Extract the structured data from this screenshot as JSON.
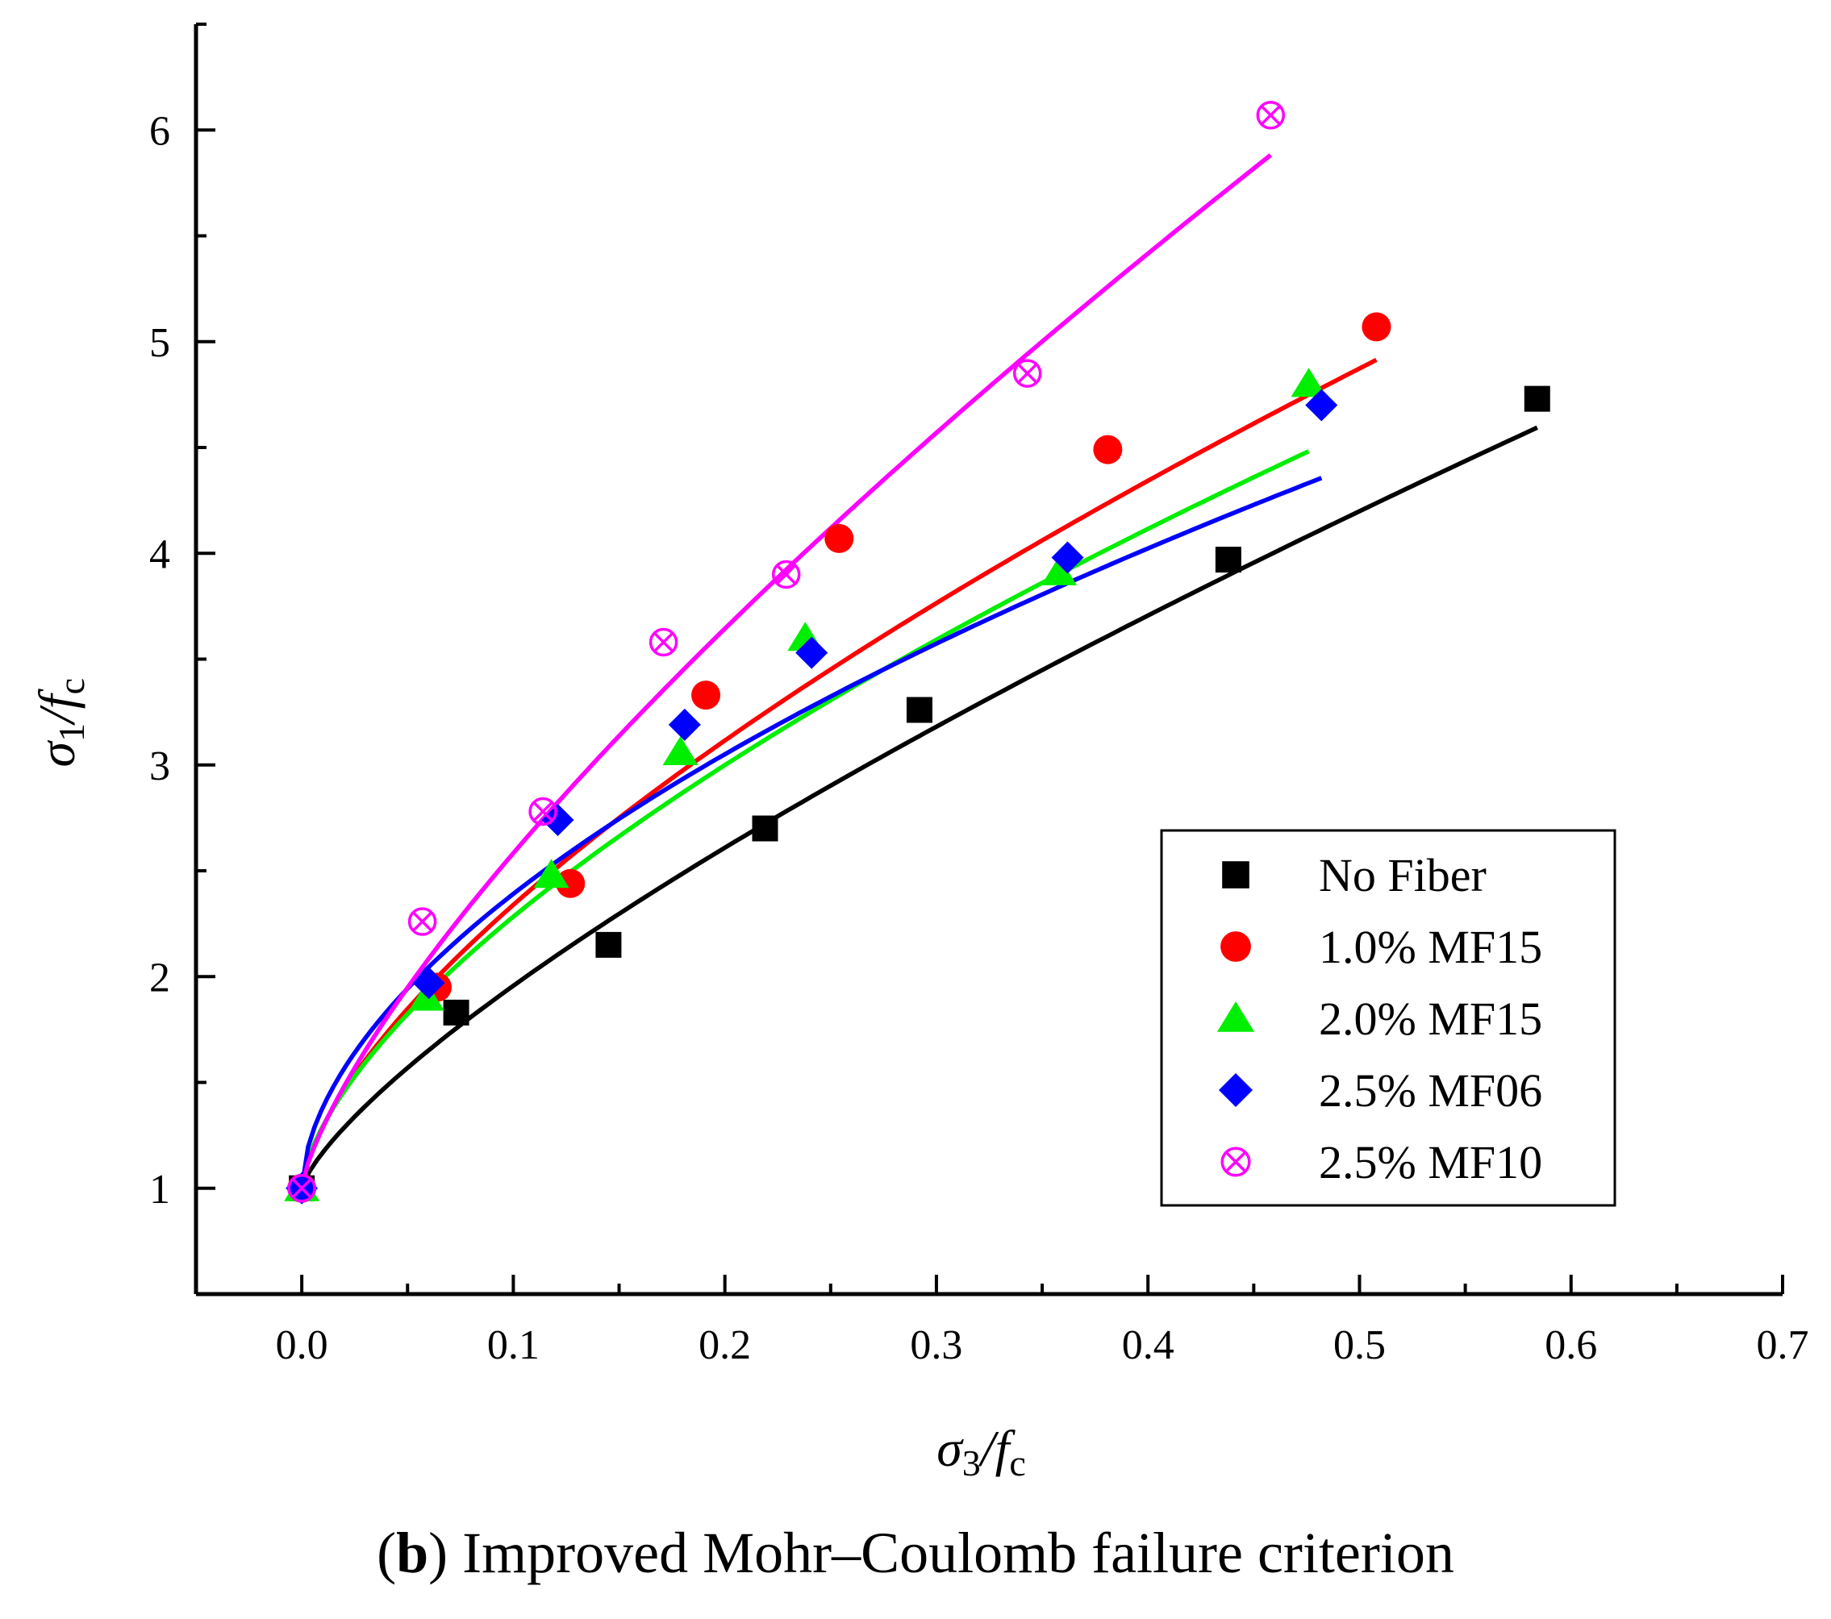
{
  "chart_data": {
    "type": "scatter",
    "title": "",
    "xlabel": "σ3/fc",
    "ylabel": "σ1/fc",
    "xlim": [
      -0.05,
      0.7
    ],
    "ylim": [
      0.5,
      6.5
    ],
    "xticks": [
      0.0,
      0.1,
      0.2,
      0.3,
      0.4,
      0.5,
      0.6,
      0.7
    ],
    "xtick_labels": [
      "0.0",
      "0.1",
      "0.2",
      "0.3",
      "0.4",
      "0.5",
      "0.6",
      "0.7"
    ],
    "yticks": [
      1,
      2,
      3,
      4,
      5,
      6
    ],
    "ytick_labels": [
      "1",
      "2",
      "3",
      "4",
      "5",
      "6"
    ],
    "legend_position": "lower-right",
    "series": [
      {
        "name": "No Fiber",
        "marker": "square",
        "color": "#000000",
        "points": [
          [
            0.0,
            1.0
          ],
          [
            0.073,
            1.83
          ],
          [
            0.145,
            2.15
          ],
          [
            0.219,
            2.7
          ],
          [
            0.292,
            3.26
          ],
          [
            0.438,
            3.97
          ],
          [
            0.584,
            4.73
          ]
        ],
        "fit": {
          "x_max": 0.584,
          "k": 5.38,
          "n": 0.75
        }
      },
      {
        "name": "1.0% MF15",
        "marker": "circle",
        "color": "#ff0000",
        "points": [
          [
            0.0,
            1.0
          ],
          [
            0.064,
            1.95
          ],
          [
            0.127,
            2.44
          ],
          [
            0.191,
            3.33
          ],
          [
            0.254,
            4.07
          ],
          [
            0.381,
            4.49
          ],
          [
            0.508,
            5.07
          ]
        ],
        "fit": {
          "x_max": 0.508,
          "k": 6.12,
          "n": 0.66
        }
      },
      {
        "name": "2.0% MF15",
        "marker": "triangle",
        "color": "#00ee00",
        "points": [
          [
            0.0,
            1.0
          ],
          [
            0.059,
            1.9
          ],
          [
            0.118,
            2.48
          ],
          [
            0.179,
            3.06
          ],
          [
            0.238,
            3.6
          ],
          [
            0.358,
            3.91
          ],
          [
            0.476,
            4.8
          ]
        ],
        "fit": {
          "x_max": 0.476,
          "k": 5.6,
          "n": 0.64
        }
      },
      {
        "name": "2.5% MF06",
        "marker": "diamond",
        "color": "#0000ff",
        "points": [
          [
            0.0,
            1.0
          ],
          [
            0.06,
            1.97
          ],
          [
            0.121,
            2.74
          ],
          [
            0.181,
            3.19
          ],
          [
            0.241,
            3.53
          ],
          [
            0.362,
            3.98
          ],
          [
            0.482,
            4.7
          ]
        ],
        "fit": {
          "x_max": 0.482,
          "k": 5.05,
          "n": 0.56
        }
      },
      {
        "name": "2.5% MF10",
        "marker": "circle-x",
        "color": "#ff00ff",
        "points": [
          [
            0.0,
            1.0
          ],
          [
            0.057,
            2.26
          ],
          [
            0.114,
            2.78
          ],
          [
            0.171,
            3.58
          ],
          [
            0.229,
            3.9
          ],
          [
            0.343,
            4.85
          ],
          [
            0.458,
            6.07
          ]
        ],
        "fit": {
          "x_max": 0.458,
          "k": 8.7,
          "n": 0.74
        }
      }
    ]
  },
  "caption": {
    "letter": "b",
    "text": " Improved Mohr–Coulomb failure criterion",
    "open": "(",
    "close": ")"
  }
}
